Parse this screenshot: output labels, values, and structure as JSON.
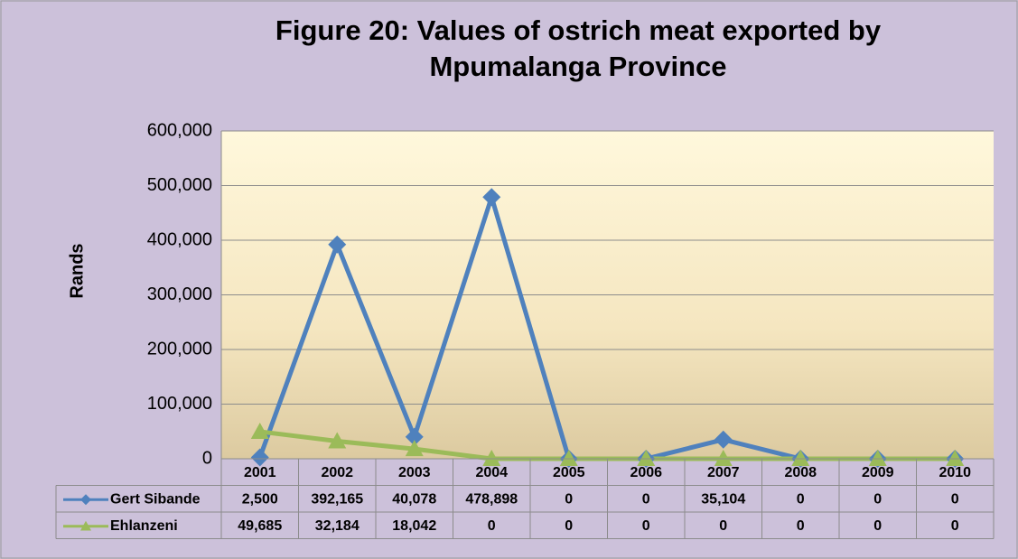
{
  "chart_data": {
    "type": "line",
    "title": "Figure 20: Values of ostrich meat exported by Mpumalanga Province",
    "y_label": "Rands",
    "categories": [
      "2001",
      "2002",
      "2003",
      "2004",
      "2005",
      "2006",
      "2007",
      "2008",
      "2009",
      "2010"
    ],
    "series": [
      {
        "name": "Gert Sibande",
        "color": "#4f81bd",
        "marker": "diamond",
        "values": [
          2500,
          392165,
          40078,
          478898,
          0,
          0,
          35104,
          0,
          0,
          0
        ],
        "value_labels": [
          "2,500",
          "392,165",
          "40,078",
          "478,898",
          "0",
          "0",
          "35,104",
          "0",
          "0",
          "0"
        ]
      },
      {
        "name": "Ehlanzeni",
        "color": "#9bbb59",
        "marker": "triangle",
        "values": [
          49685,
          32184,
          18042,
          0,
          0,
          0,
          0,
          0,
          0,
          0
        ],
        "value_labels": [
          "49,685",
          "32,184",
          "18,042",
          "0",
          "0",
          "0",
          "0",
          "0",
          "0",
          "0"
        ]
      }
    ],
    "ylim": [
      0,
      600000
    ],
    "yticks": [
      0,
      {
        "value": 100000,
        "label": "100,000"
      },
      {
        "value": 200000,
        "label": "200,000"
      },
      {
        "value": 300000,
        "label": "300,000"
      },
      {
        "value": 400000,
        "label": "400,000"
      },
      {
        "value": 500000,
        "label": "500,000"
      },
      {
        "value": 600000,
        "label": "600,000"
      }
    ],
    "grid": true,
    "data_table": true
  }
}
